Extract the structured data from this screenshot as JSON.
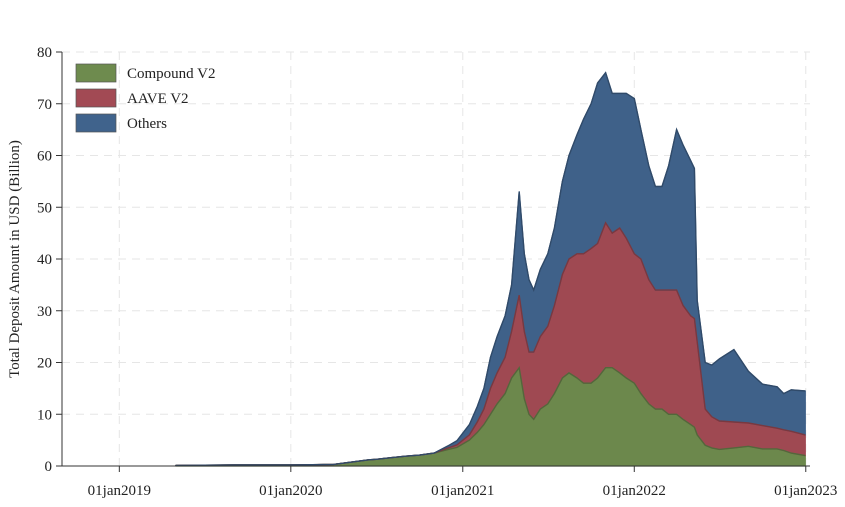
{
  "chart_data": {
    "type": "area",
    "stacked": true,
    "ylabel": "Total Deposit Amount in USD (Billion)",
    "xlabel": "",
    "ylim": [
      0,
      80
    ],
    "yticks": [
      0,
      10,
      20,
      30,
      40,
      50,
      60,
      70,
      80
    ],
    "xlim": [
      "2018-09-01",
      "2023-01-10"
    ],
    "xticks": [
      "2019-01-01",
      "2020-01-01",
      "2021-01-01",
      "2022-01-01",
      "2023-01-01"
    ],
    "xtick_labels": [
      "01jan2019",
      "01jan2020",
      "01jan2021",
      "01jan2022",
      "01jan2023"
    ],
    "grid": true,
    "legend_position": "top-left",
    "x": [
      "2019-05-01",
      "2019-09-01",
      "2020-01-01",
      "2020-04-01",
      "2020-06-15",
      "2020-07-01",
      "2020-08-01",
      "2020-09-01",
      "2020-10-01",
      "2020-11-01",
      "2020-12-01",
      "2020-12-20",
      "2021-01-15",
      "2021-02-01",
      "2021-02-15",
      "2021-03-01",
      "2021-03-15",
      "2021-04-01",
      "2021-04-15",
      "2021-05-01",
      "2021-05-12",
      "2021-05-22",
      "2021-06-01",
      "2021-06-15",
      "2021-07-01",
      "2021-07-15",
      "2021-08-01",
      "2021-08-15",
      "2021-09-01",
      "2021-09-15",
      "2021-10-01",
      "2021-10-15",
      "2021-11-01",
      "2021-11-15",
      "2021-12-01",
      "2021-12-15",
      "2022-01-01",
      "2022-01-15",
      "2022-02-01",
      "2022-02-15",
      "2022-03-01",
      "2022-03-15",
      "2022-04-01",
      "2022-04-15",
      "2022-05-01",
      "2022-05-09",
      "2022-05-15",
      "2022-06-01",
      "2022-06-15",
      "2022-07-01",
      "2022-08-01",
      "2022-09-01",
      "2022-10-01",
      "2022-11-01",
      "2022-11-15",
      "2022-12-01",
      "2022-12-31"
    ],
    "series": [
      {
        "name": "Compound V2",
        "color": "#6e8b4e",
        "values": [
          0.1,
          0.2,
          0.2,
          0.3,
          1.2,
          1.3,
          1.6,
          1.9,
          2.1,
          2.5,
          3.2,
          3.6,
          5,
          6.5,
          8,
          10,
          12,
          14,
          17,
          19,
          13,
          10,
          9,
          11,
          12,
          14,
          17,
          18,
          17,
          16,
          16,
          17,
          19,
          19,
          18,
          17,
          16,
          14,
          12,
          11,
          11,
          10,
          10,
          9,
          8,
          7.5,
          6,
          4,
          3.5,
          3.2,
          3.5,
          3.8,
          3.3,
          3.3,
          3,
          2.5,
          2
        ]
      },
      {
        "name": "AAVE V2",
        "color": "#a24a54",
        "values": [
          0,
          0,
          0,
          0,
          0,
          0,
          0,
          0,
          0,
          0,
          0.3,
          0.5,
          1,
          2,
          3,
          5,
          6,
          7,
          9,
          14,
          13,
          12,
          13,
          14,
          15,
          17,
          20,
          22,
          24,
          25,
          26,
          26,
          28,
          26,
          28,
          27,
          25,
          26,
          24,
          23,
          23,
          24,
          24,
          22,
          21,
          21,
          18,
          7,
          6,
          5.5,
          5,
          4.5,
          4.5,
          4,
          4,
          4.2,
          4
        ]
      },
      {
        "name": "Others",
        "color": "#40638c",
        "values": [
          0,
          0,
          0,
          0,
          0,
          0,
          0,
          0,
          0,
          0,
          0.4,
          0.8,
          2,
          3,
          4,
          6,
          7,
          8,
          9,
          20,
          15,
          14,
          12,
          13,
          14,
          15,
          18,
          20,
          23,
          26,
          28,
          31,
          29,
          27,
          26,
          28,
          30,
          25,
          22,
          20,
          20,
          24,
          31,
          31,
          30,
          29,
          8,
          9,
          10,
          12,
          14,
          10,
          8,
          8,
          7,
          8,
          8.5
        ]
      }
    ]
  }
}
